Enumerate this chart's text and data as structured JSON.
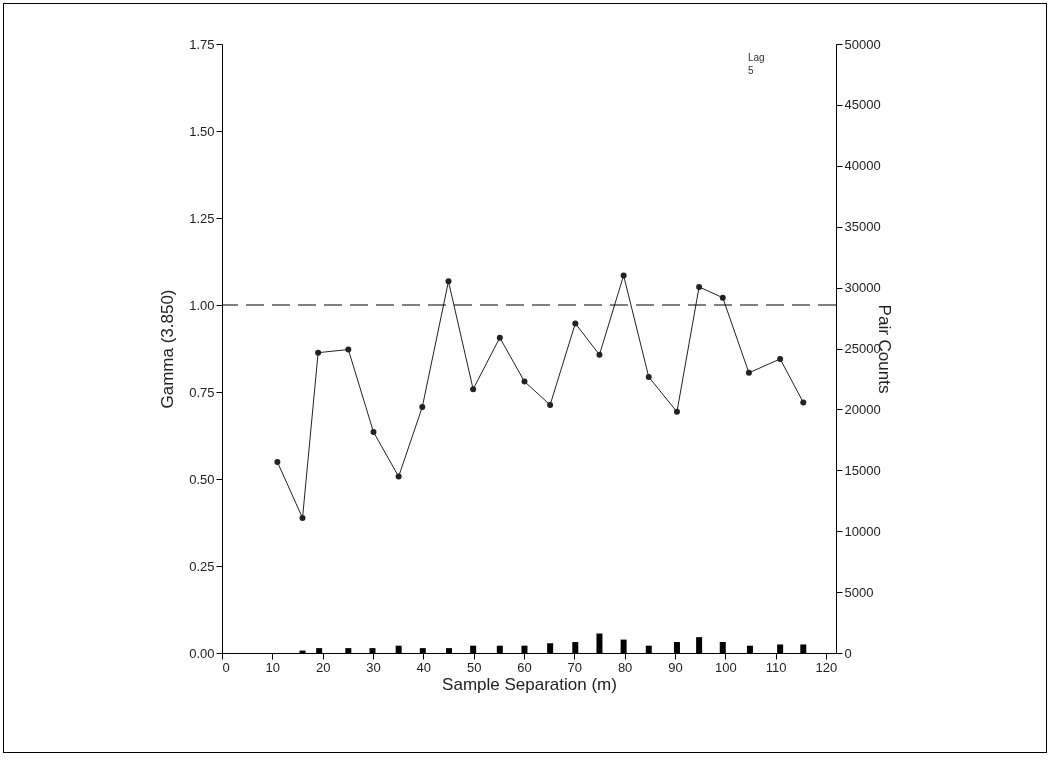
{
  "chart_data": {
    "type": "line",
    "xlabel": "Sample Separation (m)",
    "ylabel": "Gamma (3.850)",
    "y2label": "Pair Counts",
    "x": [
      11.0,
      16.0,
      19.1,
      25.1,
      30.1,
      35.1,
      39.8,
      45.0,
      49.9,
      55.2,
      60.1,
      65.2,
      70.2,
      75.0,
      79.8,
      84.8,
      90.4,
      94.8,
      99.5,
      104.7,
      110.9,
      115.5
    ],
    "series": [
      {
        "color": "#222222",
        "values": [
          0.549,
          0.388,
          0.863,
          0.872,
          0.635,
          0.507,
          0.707,
          1.068,
          0.758,
          0.906,
          0.78,
          0.713,
          0.947,
          0.857,
          1.085,
          0.793,
          0.693,
          1.052,
          1.021,
          0.805,
          0.845,
          0.72
        ]
      },
      {
        "type": "bar",
        "axis": "y2",
        "color": "#000000",
        "x": [
          16.0,
          19.3,
          25.1,
          29.9,
          35.1,
          39.9,
          45.1,
          49.9,
          55.2,
          60.1,
          65.2,
          70.2,
          75.0,
          79.8,
          84.8,
          90.4,
          94.8,
          99.5,
          104.9,
          110.9,
          115.5
        ],
        "values": [
          200,
          400,
          400,
          400,
          600,
          400,
          400,
          600,
          600,
          600,
          800,
          900,
          1600,
          1100,
          600,
          900,
          1300,
          900,
          600,
          700,
          700
        ]
      }
    ],
    "marker": "circle",
    "line_style": "solid",
    "xlim": [
      0,
      122
    ],
    "xticks": [
      0,
      10,
      20,
      30,
      40,
      50,
      60,
      70,
      80,
      90,
      100,
      110,
      120
    ],
    "ylim": [
      0,
      1.75
    ],
    "yticks": [
      {
        "value": 0,
        "label": "0.00"
      },
      {
        "value": 0.25,
        "label": "0.25"
      },
      {
        "value": 0.5,
        "label": "0.50"
      },
      {
        "value": 0.75,
        "label": "0.75"
      },
      {
        "value": 1,
        "label": "1.00"
      },
      {
        "value": 1.25,
        "label": "1.25"
      },
      {
        "value": 1.5,
        "label": "1.50"
      },
      {
        "value": 1.75,
        "label": "1.75"
      }
    ],
    "y2lim": [
      0,
      50000
    ],
    "y2ticks": [
      0,
      5000,
      10000,
      15000,
      20000,
      25000,
      30000,
      35000,
      40000,
      45000,
      50000
    ],
    "ref_lines": [
      {
        "axis": "y",
        "value": 1,
        "color": "#000000",
        "line_style": "dashed"
      }
    ],
    "annotations": [
      "Lag\n5"
    ]
  }
}
